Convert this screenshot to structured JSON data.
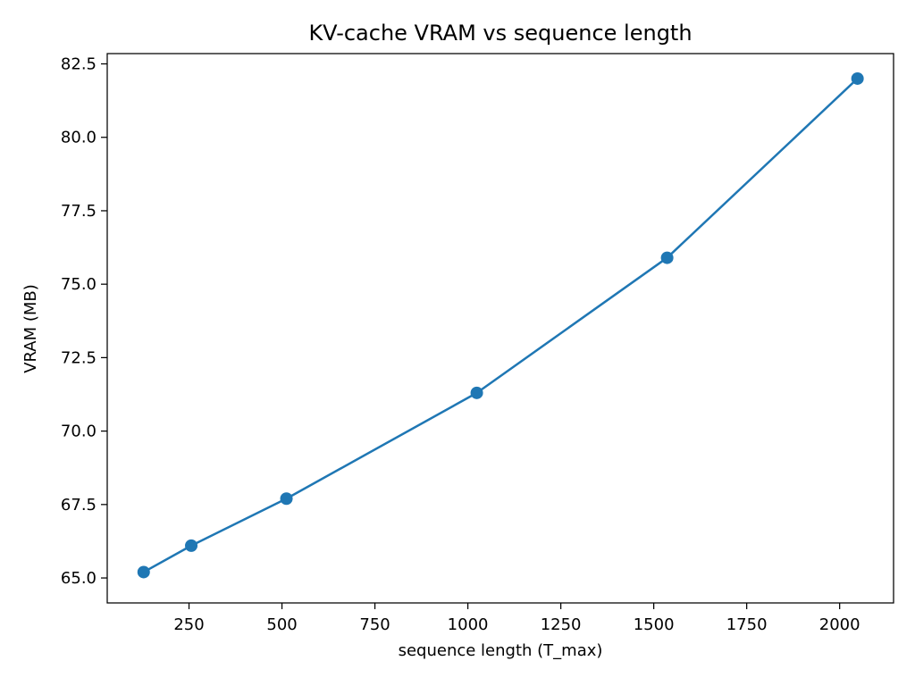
{
  "chart_data": {
    "type": "line",
    "title": "KV-cache VRAM vs sequence length",
    "xlabel": "sequence length (T_max)",
    "ylabel": "VRAM (MB)",
    "xlim": [
      30,
      2145
    ],
    "ylim": [
      64.15,
      82.85
    ],
    "xticks": [
      250,
      500,
      750,
      1000,
      1250,
      1500,
      1750,
      2000
    ],
    "xtick_labels": [
      "250",
      "500",
      "750",
      "1000",
      "1250",
      "1500",
      "1750",
      "2000"
    ],
    "yticks": [
      65.0,
      67.5,
      70.0,
      72.5,
      75.0,
      77.5,
      80.0,
      82.5
    ],
    "ytick_labels": [
      "65.0",
      "67.5",
      "70.0",
      "72.5",
      "75.0",
      "77.5",
      "80.0",
      "82.5"
    ],
    "grid": false,
    "series": [
      {
        "x": [
          128,
          256,
          512,
          1024,
          1536,
          2048
        ],
        "y": [
          65.2,
          66.1,
          67.7,
          71.3,
          75.9,
          82.0
        ],
        "color": "#1f77b4",
        "marker": "circle"
      }
    ]
  }
}
